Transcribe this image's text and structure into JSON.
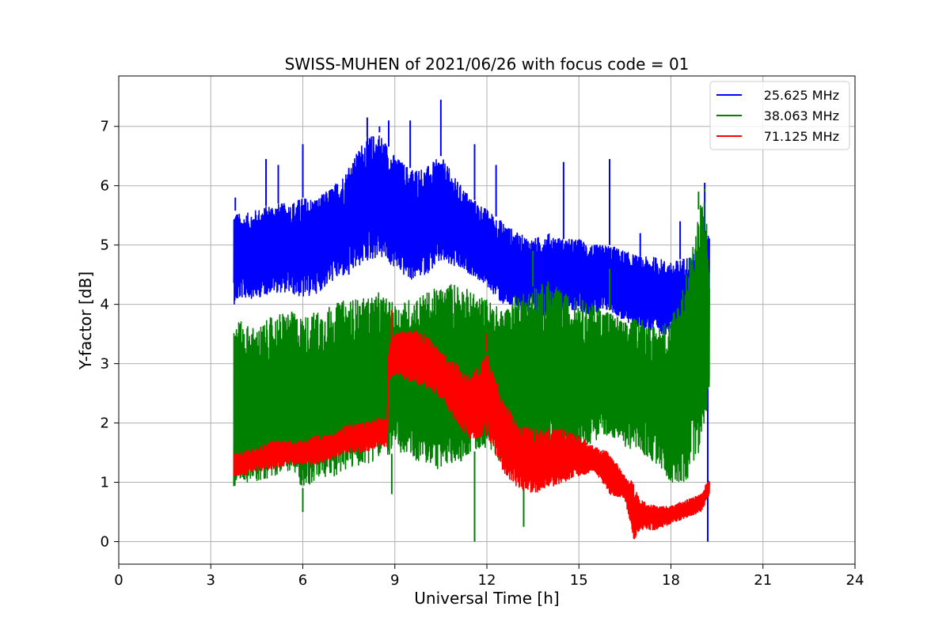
{
  "chart_data": {
    "type": "line",
    "title": "SWISS-MUHEN of 2021/06/26 with focus code = 01",
    "xlabel": "Universal Time [h]",
    "ylabel": "Y-factor [dB]",
    "xlim": [
      0,
      24
    ],
    "ylim": [
      -0.38,
      7.85
    ],
    "x_ticks": [
      0,
      3,
      6,
      9,
      12,
      15,
      18,
      21,
      24
    ],
    "y_ticks": [
      0,
      1,
      2,
      3,
      4,
      5,
      6,
      7
    ],
    "grid": true,
    "legend_position": "top-right",
    "series": [
      {
        "name": "25.625 MHz",
        "color": "#0000ff",
        "x": [
          3.75,
          4.0,
          4.5,
          5.0,
          5.5,
          6.0,
          6.5,
          7.0,
          7.5,
          8.0,
          8.5,
          9.0,
          9.5,
          10.0,
          10.5,
          11.0,
          11.5,
          12.0,
          12.5,
          13.0,
          13.5,
          14.0,
          14.5,
          15.0,
          15.5,
          16.0,
          16.5,
          17.0,
          17.5,
          18.0,
          18.5,
          18.9,
          19.1,
          19.25
        ],
        "y_low": [
          4.0,
          4.1,
          4.1,
          4.2,
          4.2,
          4.1,
          4.2,
          4.4,
          4.5,
          4.7,
          4.8,
          4.6,
          4.4,
          4.5,
          4.7,
          4.6,
          4.5,
          4.3,
          4.0,
          3.9,
          3.8,
          3.8,
          3.9,
          3.9,
          3.8,
          3.9,
          3.7,
          3.6,
          3.5,
          3.5,
          3.6,
          2.6,
          2.8,
          3.5
        ],
        "y_high": [
          5.6,
          5.5,
          5.6,
          5.7,
          5.7,
          5.8,
          5.8,
          6.0,
          6.3,
          6.8,
          6.9,
          6.5,
          6.3,
          6.3,
          6.5,
          6.1,
          5.8,
          5.6,
          5.4,
          5.2,
          5.1,
          5.2,
          5.1,
          5.1,
          5.0,
          5.0,
          4.9,
          4.8,
          4.8,
          4.7,
          4.8,
          4.9,
          5.2,
          5.5
        ],
        "spikes": [
          [
            3.8,
            5.8
          ],
          [
            4.8,
            6.45
          ],
          [
            5.2,
            6.35
          ],
          [
            6.0,
            6.7
          ],
          [
            7.5,
            6.3
          ],
          [
            8.1,
            7.15
          ],
          [
            8.5,
            7.0
          ],
          [
            8.8,
            7.1
          ],
          [
            9.5,
            7.1
          ],
          [
            10.5,
            7.45
          ],
          [
            11.6,
            6.7
          ],
          [
            12.3,
            6.35
          ],
          [
            14.5,
            6.4
          ],
          [
            16.0,
            6.45
          ],
          [
            17.0,
            5.2
          ],
          [
            18.3,
            5.4
          ],
          [
            19.1,
            6.05
          ],
          [
            19.2,
            0.0
          ]
        ]
      },
      {
        "name": "38.063 MHz",
        "color": "#008000",
        "x": [
          3.75,
          4.0,
          4.5,
          5.0,
          5.5,
          6.0,
          6.5,
          7.0,
          7.5,
          8.0,
          8.5,
          9.0,
          9.5,
          10.0,
          10.5,
          11.0,
          11.5,
          12.0,
          12.5,
          13.0,
          13.5,
          14.0,
          14.5,
          15.0,
          15.5,
          16.0,
          16.5,
          17.0,
          17.5,
          18.0,
          18.5,
          18.9,
          19.1,
          19.25
        ],
        "y_low": [
          0.9,
          1.0,
          1.0,
          1.1,
          1.2,
          0.9,
          1.0,
          1.1,
          1.2,
          1.3,
          1.4,
          1.5,
          1.4,
          1.3,
          1.2,
          1.3,
          1.5,
          1.6,
          1.3,
          1.1,
          1.0,
          1.2,
          1.3,
          1.5,
          1.7,
          1.8,
          1.6,
          1.5,
          1.3,
          1.0,
          1.0,
          1.5,
          2.0,
          2.5
        ],
        "y_high": [
          3.8,
          3.7,
          3.6,
          3.8,
          3.9,
          3.8,
          3.9,
          4.0,
          4.1,
          4.1,
          4.2,
          4.0,
          4.1,
          4.2,
          4.3,
          4.4,
          4.2,
          4.1,
          3.9,
          4.2,
          4.3,
          4.4,
          4.2,
          4.1,
          4.0,
          3.9,
          3.7,
          3.8,
          3.6,
          3.8,
          4.5,
          5.6,
          5.9,
          4.8
        ],
        "spikes": [
          [
            6.0,
            0.5
          ],
          [
            8.9,
            0.8
          ],
          [
            11.6,
            0.0
          ],
          [
            13.2,
            0.25
          ],
          [
            13.5,
            4.9
          ],
          [
            16.0,
            4.6
          ],
          [
            18.9,
            5.9
          ],
          [
            19.1,
            5.95
          ]
        ]
      },
      {
        "name": "71.125 MHz",
        "color": "#ff0000",
        "x": [
          3.75,
          4.0,
          4.5,
          5.0,
          5.5,
          6.0,
          6.5,
          7.0,
          7.5,
          8.0,
          8.5,
          8.75,
          8.8,
          9.0,
          9.5,
          10.0,
          10.5,
          11.0,
          11.5,
          12.0,
          12.5,
          13.0,
          13.5,
          14.0,
          14.5,
          15.0,
          15.5,
          16.0,
          16.5,
          16.8,
          17.0,
          17.5,
          18.0,
          18.5,
          19.0,
          19.25
        ],
        "y_low": [
          1.1,
          1.1,
          1.2,
          1.2,
          1.3,
          1.3,
          1.3,
          1.4,
          1.5,
          1.5,
          1.6,
          1.6,
          2.7,
          2.8,
          2.7,
          2.6,
          2.4,
          2.0,
          1.7,
          1.8,
          1.2,
          0.9,
          0.8,
          0.9,
          1.0,
          1.1,
          1.2,
          0.8,
          0.7,
          0.0,
          0.2,
          0.2,
          0.3,
          0.4,
          0.5,
          0.8
        ],
        "y_high": [
          1.5,
          1.5,
          1.6,
          1.7,
          1.7,
          1.7,
          1.8,
          1.8,
          2.0,
          2.0,
          2.1,
          2.1,
          3.3,
          3.5,
          3.6,
          3.5,
          3.2,
          3.0,
          2.8,
          3.2,
          2.4,
          2.0,
          1.9,
          1.9,
          1.9,
          1.8,
          1.6,
          1.5,
          1.1,
          1.0,
          0.7,
          0.6,
          0.6,
          0.7,
          0.8,
          1.1
        ],
        "spikes": [
          [
            8.9,
            3.9
          ],
          [
            12.0,
            3.5
          ],
          [
            16.8,
            0.0
          ]
        ]
      }
    ]
  }
}
